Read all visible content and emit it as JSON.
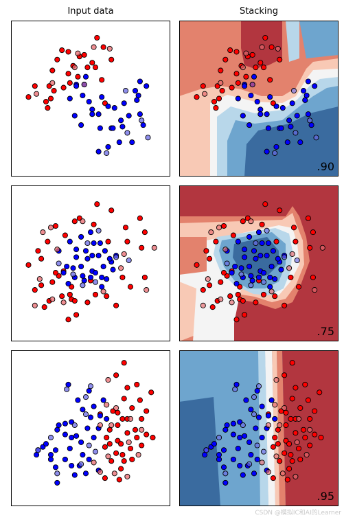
{
  "column_titles": [
    "Input data",
    "Stacking"
  ],
  "watermark": "CSDN @模拟IC和AI的Learner",
  "colors": {
    "red_train": "#ff0000",
    "red_test": "#e8686d",
    "blue_train": "#0000ff",
    "blue_test": "#6a6ae6",
    "scale": [
      "#3a6b9f",
      "#6ea5ce",
      "#b8d7ea",
      "#f4f4f4",
      "#f8c9b5",
      "#e3826d",
      "#b2363f"
    ]
  },
  "chart_data": [
    {
      "type": "scatter",
      "panel": "input",
      "row": 0,
      "xlim": [
        0,
        100
      ],
      "ylim": [
        0,
        100
      ],
      "red": [
        [
          54,
          89
        ],
        [
          58,
          83
        ],
        [
          36,
          80
        ],
        [
          43,
          77
        ],
        [
          46,
          78
        ],
        [
          63,
          75
        ],
        [
          15,
          58
        ],
        [
          26,
          68
        ],
        [
          29,
          75
        ],
        [
          32,
          81
        ],
        [
          39,
          71
        ],
        [
          42,
          64
        ],
        [
          53,
          70
        ],
        [
          57,
          62
        ],
        [
          27,
          55
        ],
        [
          33,
          57
        ],
        [
          23,
          44
        ],
        [
          24,
          58
        ],
        [
          11,
          51
        ],
        [
          48,
          70
        ],
        [
          46,
          59
        ],
        [
          59,
          47
        ],
        [
          37,
          60
        ],
        [
          25,
          50
        ],
        [
          22,
          48
        ],
        [
          36,
          66
        ],
        [
          51,
          73
        ]
      ],
      "blue": [
        [
          47,
          64
        ],
        [
          41,
          59
        ],
        [
          37,
          50
        ],
        [
          45,
          52
        ],
        [
          49,
          48
        ],
        [
          51,
          43
        ],
        [
          55,
          40
        ],
        [
          61,
          45
        ],
        [
          63,
          31
        ],
        [
          65,
          44
        ],
        [
          69,
          36
        ],
        [
          74,
          39
        ],
        [
          78,
          55
        ],
        [
          79,
          49
        ],
        [
          81,
          40
        ],
        [
          83,
          33
        ],
        [
          76,
          22
        ],
        [
          68,
          22
        ],
        [
          55,
          16
        ],
        [
          61,
          19
        ],
        [
          51,
          40
        ],
        [
          57,
          51
        ],
        [
          40,
          39
        ],
        [
          44,
          33
        ],
        [
          81,
          61
        ],
        [
          85,
          58
        ],
        [
          80,
          52
        ],
        [
          64,
          31
        ],
        [
          56,
          31
        ],
        [
          71,
          47
        ],
        [
          79,
          49
        ],
        [
          41,
          58
        ],
        [
          70,
          32
        ]
      ],
      "red_test": [
        [
          52,
          83
        ],
        [
          62,
          82
        ],
        [
          40,
          70
        ],
        [
          16,
          53
        ],
        [
          26,
          60
        ],
        [
          42,
          79
        ]
      ],
      "blue_test": [
        [
          72,
          55
        ],
        [
          86,
          25
        ],
        [
          60,
          15
        ],
        [
          73,
          28
        ],
        [
          82,
          36
        ],
        [
          46,
          59
        ]
      ]
    },
    {
      "type": "contour",
      "panel": "stacking",
      "row": 0,
      "score": ".90",
      "xlim": [
        0,
        100
      ],
      "ylim": [
        0,
        100
      ]
    },
    {
      "type": "scatter",
      "panel": "input",
      "row": 1,
      "xlim": [
        0,
        100
      ],
      "ylim": [
        0,
        100
      ],
      "red": [
        [
          54,
          88
        ],
        [
          63,
          84
        ],
        [
          43,
          79
        ],
        [
          40,
          77
        ],
        [
          28,
          74
        ],
        [
          23,
          64
        ],
        [
          52,
          75
        ],
        [
          61,
          64
        ],
        [
          72,
          73
        ],
        [
          81,
          79
        ],
        [
          84,
          70
        ],
        [
          73,
          64
        ],
        [
          82,
          60
        ],
        [
          19,
          53
        ],
        [
          11,
          49
        ],
        [
          15,
          33
        ],
        [
          19,
          36
        ],
        [
          37,
          30
        ],
        [
          32,
          29
        ],
        [
          24,
          26
        ],
        [
          21,
          22
        ],
        [
          38,
          27
        ],
        [
          75,
          35
        ],
        [
          70,
          41
        ],
        [
          60,
          29
        ],
        [
          53,
          30
        ],
        [
          50,
          39
        ],
        [
          41,
          17
        ],
        [
          66,
          23
        ],
        [
          40,
          26
        ],
        [
          36,
          14
        ],
        [
          38,
          35
        ],
        [
          84,
          41
        ],
        [
          30,
          42
        ],
        [
          33,
          45
        ],
        [
          17,
          58
        ],
        [
          28,
          44
        ],
        [
          48,
          25
        ],
        [
          34,
          68
        ],
        [
          26,
          38
        ]
      ],
      "blue": [
        [
          50,
          70
        ],
        [
          44,
          67
        ],
        [
          37,
          64
        ],
        [
          56,
          63
        ],
        [
          41,
          54
        ],
        [
          47,
          58
        ],
        [
          51,
          55
        ],
        [
          35,
          48
        ],
        [
          44,
          48
        ],
        [
          51,
          45
        ],
        [
          58,
          48
        ],
        [
          63,
          51
        ],
        [
          59,
          58
        ],
        [
          66,
          55
        ],
        [
          60,
          40
        ],
        [
          53,
          44
        ],
        [
          57,
          35
        ],
        [
          46,
          39
        ],
        [
          36,
          37
        ],
        [
          30,
          58
        ],
        [
          39,
          47
        ],
        [
          33,
          44
        ],
        [
          64,
          46
        ],
        [
          48,
          53
        ],
        [
          41,
          59
        ],
        [
          55,
          55
        ],
        [
          45,
          42
        ],
        [
          62,
          53
        ],
        [
          57,
          41
        ],
        [
          40,
          41
        ],
        [
          50,
          41
        ],
        [
          52,
          63
        ]
      ],
      "red_test": [
        [
          45,
          77
        ],
        [
          25,
          73
        ],
        [
          20,
          70
        ],
        [
          71,
          56
        ],
        [
          90,
          60
        ],
        [
          26,
          27
        ],
        [
          15,
          23
        ],
        [
          33,
          25
        ],
        [
          58,
          32
        ],
        [
          29,
          59
        ],
        [
          85,
          33
        ],
        [
          18,
          40
        ],
        [
          69,
          47
        ]
      ],
      "blue_test": [
        [
          55,
          71
        ],
        [
          48,
          63
        ],
        [
          66,
          54
        ],
        [
          74,
          52
        ],
        [
          30,
          50
        ],
        [
          53,
          38
        ],
        [
          45,
          36
        ],
        [
          39,
          43
        ]
      ]
    },
    {
      "type": "contour",
      "panel": "stacking",
      "row": 1,
      "score": ".75",
      "xlim": [
        0,
        100
      ],
      "ylim": [
        0,
        100
      ]
    },
    {
      "type": "scatter",
      "panel": "input",
      "row": 2,
      "xlim": [
        0,
        100
      ],
      "ylim": [
        0,
        100
      ],
      "red": [
        [
          71,
          92
        ],
        [
          66,
          84
        ],
        [
          73,
          76
        ],
        [
          79,
          78
        ],
        [
          81,
          68
        ],
        [
          88,
          73
        ],
        [
          85,
          61
        ],
        [
          76,
          63
        ],
        [
          70,
          56
        ],
        [
          67,
          52
        ],
        [
          62,
          49
        ],
        [
          60,
          44
        ],
        [
          73,
          47
        ],
        [
          79,
          44
        ],
        [
          85,
          46
        ],
        [
          82,
          39
        ],
        [
          89,
          44
        ],
        [
          75,
          37
        ],
        [
          70,
          33
        ],
        [
          76,
          30
        ],
        [
          66,
          34
        ],
        [
          63,
          29
        ],
        [
          69,
          24
        ],
        [
          59,
          18
        ],
        [
          68,
          17
        ],
        [
          71,
          29
        ],
        [
          59,
          38
        ],
        [
          64,
          61
        ],
        [
          67,
          60
        ],
        [
          71,
          69
        ],
        [
          73,
          56
        ],
        [
          82,
          56
        ],
        [
          78,
          49
        ],
        [
          62,
          40
        ],
        [
          67,
          42
        ],
        [
          56,
          59
        ],
        [
          69,
          40
        ]
      ],
      "blue": [
        [
          36,
          78
        ],
        [
          42,
          68
        ],
        [
          49,
          74
        ],
        [
          45,
          62
        ],
        [
          52,
          64
        ],
        [
          56,
          58
        ],
        [
          50,
          57
        ],
        [
          38,
          54
        ],
        [
          34,
          53
        ],
        [
          30,
          52
        ],
        [
          29,
          49
        ],
        [
          38,
          44
        ],
        [
          34,
          46
        ],
        [
          41,
          45
        ],
        [
          44,
          41
        ],
        [
          37,
          37
        ],
        [
          28,
          36
        ],
        [
          25,
          33
        ],
        [
          17,
          36
        ],
        [
          20,
          38
        ],
        [
          25,
          30
        ],
        [
          34,
          30
        ],
        [
          45,
          33
        ],
        [
          52,
          44
        ],
        [
          55,
          50
        ],
        [
          48,
          50
        ],
        [
          60,
          56
        ],
        [
          49,
          30
        ],
        [
          43,
          26
        ],
        [
          38,
          26
        ],
        [
          28,
          25
        ],
        [
          55,
          23
        ],
        [
          47,
          21
        ],
        [
          29,
          15
        ],
        [
          40,
          20
        ],
        [
          58,
          68
        ],
        [
          22,
          40
        ],
        [
          16,
          33
        ]
      ],
      "red_test": [
        [
          61,
          81
        ],
        [
          60,
          65
        ],
        [
          56,
          52
        ],
        [
          63,
          52
        ],
        [
          75,
          56
        ],
        [
          80,
          33
        ],
        [
          61,
          32
        ],
        [
          52,
          28
        ],
        [
          56,
          22
        ],
        [
          65,
          21
        ],
        [
          73,
          19
        ],
        [
          82,
          49
        ],
        [
          66,
          63
        ],
        [
          74,
          41
        ]
      ],
      "blue_test": [
        [
          35,
          75
        ],
        [
          50,
          77
        ],
        [
          47,
          70
        ],
        [
          17,
          36
        ],
        [
          44,
          27
        ],
        [
          40,
          52
        ],
        [
          47,
          59
        ],
        [
          29,
          21
        ],
        [
          25,
          44
        ],
        [
          49,
          39
        ],
        [
          53,
          35
        ]
      ]
    },
    {
      "type": "contour",
      "panel": "stacking",
      "row": 2,
      "score": ".95",
      "xlim": [
        0,
        100
      ],
      "ylim": [
        0,
        100
      ]
    }
  ]
}
